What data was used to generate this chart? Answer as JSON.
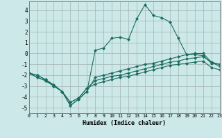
{
  "xlabel": "Humidex (Indice chaleur)",
  "background_color": "#cce8e8",
  "grid_color": "#aabbbb",
  "line_color": "#1a6e60",
  "xlim": [
    0,
    23
  ],
  "ylim": [
    -5.5,
    4.8
  ],
  "yticks": [
    -5,
    -4,
    -3,
    -2,
    -1,
    0,
    1,
    2,
    3,
    4
  ],
  "xticks": [
    0,
    1,
    2,
    3,
    4,
    5,
    6,
    7,
    8,
    9,
    10,
    11,
    12,
    13,
    14,
    15,
    16,
    17,
    18,
    19,
    20,
    21,
    22,
    23
  ],
  "s1_x": [
    0,
    1,
    2,
    3,
    4,
    5,
    6,
    7,
    8,
    9,
    10,
    11,
    12,
    13,
    14,
    15,
    16,
    17,
    18,
    19,
    20,
    21,
    22,
    23
  ],
  "s1_y": [
    -1.8,
    -2.2,
    -2.5,
    -3.0,
    -3.5,
    -4.8,
    -4.2,
    -3.5,
    0.3,
    0.5,
    1.4,
    1.5,
    1.3,
    3.2,
    4.5,
    3.5,
    3.3,
    2.9,
    1.4,
    -0.1,
    -0.1,
    -0.2,
    -0.9,
    -1.0
  ],
  "s2_x": [
    0,
    1,
    2,
    3,
    4,
    5,
    6,
    7,
    8,
    9,
    10,
    11,
    12,
    13,
    14,
    15,
    16,
    17,
    18,
    19,
    20,
    21,
    22,
    23
  ],
  "s2_y": [
    -1.8,
    -2.2,
    -2.5,
    -3.0,
    -3.5,
    -4.8,
    -4.2,
    -3.5,
    -2.2,
    -2.0,
    -1.8,
    -1.6,
    -1.4,
    -1.2,
    -1.0,
    -0.9,
    -0.7,
    -0.5,
    -0.3,
    -0.1,
    0.0,
    0.0,
    -0.8,
    -1.0
  ],
  "s3_x": [
    0,
    1,
    2,
    3,
    4,
    5,
    6,
    7,
    8,
    9,
    10,
    11,
    12,
    13,
    14,
    15,
    16,
    17,
    18,
    19,
    20,
    21,
    22,
    23
  ],
  "s3_y": [
    -1.8,
    -2.0,
    -2.4,
    -2.9,
    -3.5,
    -4.5,
    -4.1,
    -3.2,
    -2.5,
    -2.3,
    -2.1,
    -2.0,
    -1.8,
    -1.6,
    -1.4,
    -1.2,
    -1.0,
    -0.8,
    -0.7,
    -0.5,
    -0.4,
    -0.3,
    -0.8,
    -1.2
  ],
  "s4_x": [
    0,
    1,
    2,
    3,
    4,
    5,
    6,
    7,
    8,
    9,
    10,
    11,
    12,
    13,
    14,
    15,
    16,
    17,
    18,
    19,
    20,
    21,
    22,
    23
  ],
  "s4_y": [
    -1.8,
    -2.0,
    -2.4,
    -2.9,
    -3.5,
    -4.5,
    -4.1,
    -3.2,
    -2.8,
    -2.6,
    -2.4,
    -2.2,
    -2.1,
    -1.9,
    -1.7,
    -1.5,
    -1.3,
    -1.1,
    -1.0,
    -0.9,
    -0.8,
    -0.7,
    -1.3,
    -1.5
  ]
}
